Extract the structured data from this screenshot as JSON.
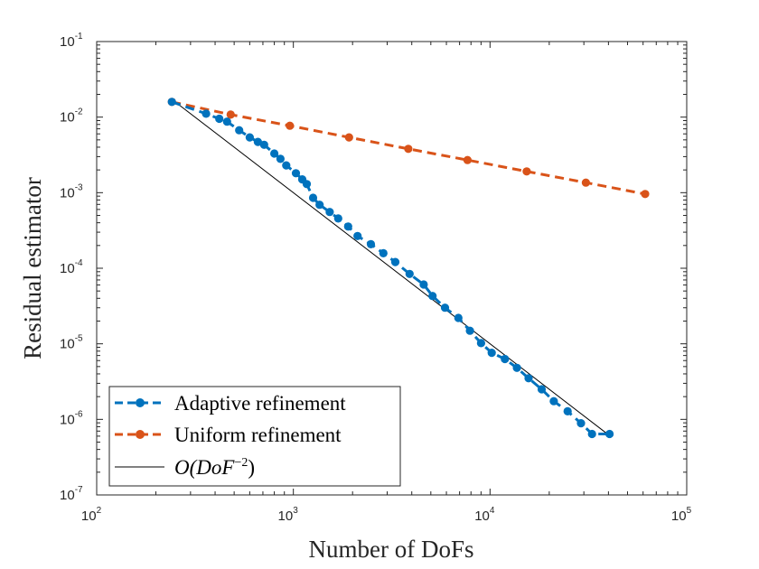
{
  "chart_data": {
    "type": "line",
    "xscale": "log",
    "yscale": "log",
    "xlim": [
      100,
      100000
    ],
    "ylim": [
      1e-07,
      0.1
    ],
    "xlabel": "Number of DoFs",
    "ylabel": "Residual estimator",
    "grid": false,
    "legend_position": "bottom-left",
    "x_ticks": [
      {
        "value": 100,
        "base": "10",
        "exp": "2"
      },
      {
        "value": 1000,
        "base": "10",
        "exp": "3"
      },
      {
        "value": 10000,
        "base": "10",
        "exp": "4"
      },
      {
        "value": 100000,
        "base": "10",
        "exp": "5"
      }
    ],
    "y_ticks": [
      {
        "value": 1e-07,
        "base": "10",
        "exp": "-7"
      },
      {
        "value": 1e-06,
        "base": "10",
        "exp": "-6"
      },
      {
        "value": 1e-05,
        "base": "10",
        "exp": "-5"
      },
      {
        "value": 0.0001,
        "base": "10",
        "exp": "-4"
      },
      {
        "value": 0.001,
        "base": "10",
        "exp": "-3"
      },
      {
        "value": 0.01,
        "base": "10",
        "exp": "-2"
      },
      {
        "value": 0.1,
        "base": "10",
        "exp": "-1"
      }
    ],
    "series": [
      {
        "name": "Adaptive refinement",
        "color": "#0072BD",
        "style": "dashed",
        "marker": "circle",
        "x": [
          241,
          360,
          420,
          460,
          530,
          600,
          660,
          710,
          800,
          860,
          920,
          1030,
          1110,
          1170,
          1260,
          1360,
          1530,
          1690,
          1900,
          2120,
          2480,
          2870,
          3300,
          3900,
          4600,
          5100,
          5900,
          6900,
          7900,
          9000,
          10200,
          11900,
          13700,
          15700,
          18300,
          21100,
          24800,
          29000,
          33000,
          40500
        ],
        "y": [
          0.0159,
          0.0111,
          0.0095,
          0.0087,
          0.0067,
          0.0054,
          0.0047,
          0.0043,
          0.0033,
          0.0028,
          0.0023,
          0.00181,
          0.0015,
          0.0013,
          0.000855,
          0.000693,
          0.000555,
          0.000456,
          0.000357,
          0.000267,
          0.000208,
          0.000158,
          0.000121,
          8.4e-05,
          6.1e-05,
          4.3e-05,
          3e-05,
          2.2e-05,
          1.49e-05,
          1.02e-05,
          7.6e-06,
          6.3e-06,
          4.8e-06,
          3.5e-06,
          2.5e-06,
          1.74e-06,
          1.28e-06,
          8.9e-07,
          6.4e-07,
          6.4e-07
        ]
      },
      {
        "name": "Uniform refinement",
        "color": "#D95319",
        "style": "dashed",
        "marker": "circle",
        "x": [
          241,
          480,
          960,
          1920,
          3840,
          7680,
          15360,
          30720,
          61440
        ],
        "y": [
          0.0159,
          0.0108,
          0.0077,
          0.0054,
          0.0038,
          0.0027,
          0.00191,
          0.00136,
          0.00096
        ]
      },
      {
        "name_prefix": "O(DoF",
        "name_exp": "−2",
        "name_suffix": ")",
        "color": "#000000",
        "style": "solid",
        "marker": "none",
        "x": [
          241,
          40500
        ],
        "y": [
          0.0172,
          6.1e-07
        ]
      }
    ]
  }
}
